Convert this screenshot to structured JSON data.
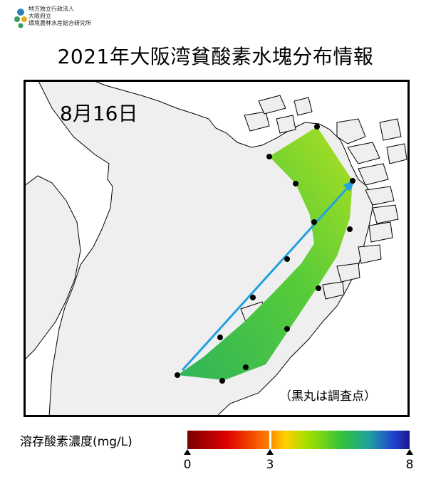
{
  "header": {
    "org_lines": [
      "地方独立行政法人",
      "大阪府立",
      "環境農林水産総合研究所"
    ],
    "title": "2021年大阪湾貧酸素水塊分布情報"
  },
  "map": {
    "date": "8月16日",
    "note": "（黒丸は調査点）",
    "colors": {
      "land": "#ffffff",
      "sea": "#efefef",
      "frame": "#000000",
      "arrow": "#22a0e0",
      "station": "#000000"
    }
  },
  "legend": {
    "label": "溶存酸素濃度(mg/L)",
    "ticks": [
      "0",
      "3",
      "8"
    ],
    "min": 0,
    "threshold": 3,
    "max": 8,
    "colors": [
      "#7a0000",
      "#e00000",
      "#ff7a00",
      "#ffd000",
      "#9be000",
      "#30c040",
      "#20a0a0",
      "#2040d0",
      "#1a1a8a"
    ]
  }
}
